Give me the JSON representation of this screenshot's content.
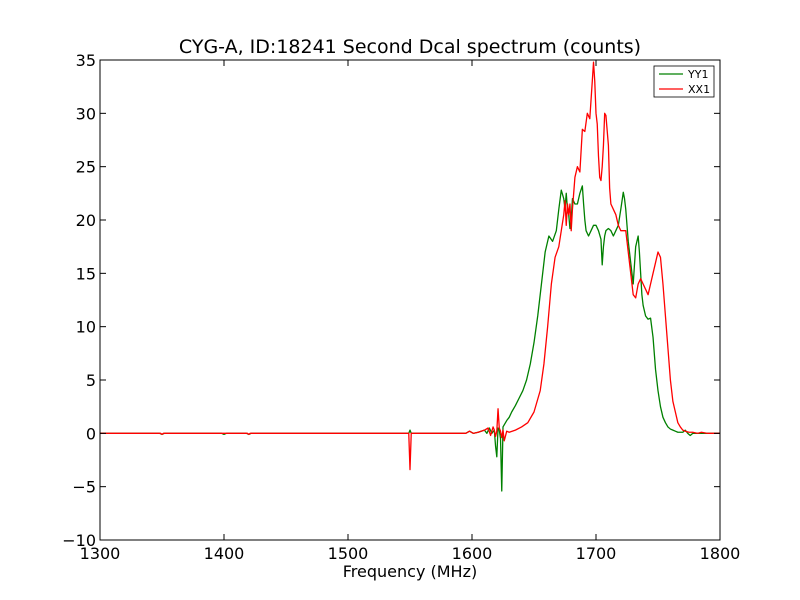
{
  "chart_data": {
    "type": "line",
    "title": "CYG-A, ID:18241 Second Dcal spectrum (counts)",
    "xlabel": "Frequency (MHz)",
    "ylabel": "",
    "xlim": [
      1300,
      1800
    ],
    "ylim": [
      -10,
      35
    ],
    "xticks": [
      1300,
      1400,
      1500,
      1600,
      1700,
      1800
    ],
    "yticks": [
      -10,
      -5,
      0,
      5,
      10,
      15,
      20,
      25,
      30,
      35
    ],
    "xtick_labels": [
      "1300",
      "1400",
      "1500",
      "1600",
      "1700",
      "1800"
    ],
    "ytick_labels": [
      "−10",
      "−5",
      "0",
      "5",
      "10",
      "15",
      "20",
      "25",
      "30",
      "35"
    ],
    "grid": false,
    "legend": "top-right",
    "series": [
      {
        "name": "YY1",
        "color": "#008000",
        "x": [
          1300,
          1348,
          1350,
          1352,
          1398,
          1400,
          1402,
          1418,
          1420,
          1422,
          1549,
          1550,
          1551,
          1595,
          1598,
          1601,
          1605,
          1610,
          1612,
          1614,
          1616,
          1618,
          1619,
          1620,
          1621,
          1622,
          1623,
          1624,
          1625,
          1626,
          1628,
          1630,
          1632,
          1635,
          1638,
          1641,
          1644,
          1647,
          1650,
          1653,
          1656,
          1659,
          1662,
          1665,
          1668,
          1670,
          1672,
          1674,
          1675,
          1676,
          1677,
          1678,
          1679,
          1680,
          1681,
          1683,
          1685,
          1687,
          1689,
          1690,
          1691,
          1692,
          1694,
          1696,
          1698,
          1700,
          1702,
          1704,
          1705,
          1706,
          1707,
          1708,
          1710,
          1712,
          1714,
          1716,
          1718,
          1720,
          1722,
          1723,
          1724,
          1725,
          1726,
          1728,
          1730,
          1732,
          1734,
          1735,
          1736,
          1737,
          1738,
          1740,
          1742,
          1744,
          1746,
          1748,
          1750,
          1752,
          1754,
          1756,
          1758,
          1760,
          1762,
          1764,
          1766,
          1768,
          1770,
          1772,
          1774,
          1776,
          1778,
          1780,
          1782,
          1785,
          1790,
          1800
        ],
        "values": [
          0,
          0,
          -0.1,
          0,
          0,
          -0.1,
          0,
          0,
          -0.1,
          0,
          0,
          0.3,
          0,
          0,
          0.2,
          0,
          0.1,
          0.3,
          0,
          0.5,
          0,
          0.3,
          -1.2,
          -2.2,
          0.5,
          0.3,
          -0.5,
          -5.4,
          0.6,
          0.8,
          1.2,
          1.5,
          2,
          2.6,
          3.3,
          4,
          5,
          6.5,
          8.5,
          11,
          14,
          17,
          18.5,
          18,
          19,
          21,
          22.8,
          22,
          21,
          22.5,
          21,
          20.5,
          19.2,
          20,
          22,
          21.5,
          21.5,
          22.5,
          23.2,
          21.5,
          20,
          19,
          18.5,
          19,
          19.5,
          19.5,
          19,
          18.2,
          15.8,
          17.5,
          18.5,
          19,
          19.2,
          19,
          18.5,
          19,
          19.5,
          21,
          22.6,
          22,
          21,
          19.5,
          18,
          16,
          14,
          17.5,
          18.5,
          17,
          15,
          13,
          12,
          11,
          10.7,
          10.8,
          9,
          6,
          4,
          2.5,
          1.5,
          1,
          0.6,
          0.4,
          0.3,
          0.2,
          0.1,
          0.1,
          0.1,
          0.3,
          0,
          -0.2,
          0,
          0,
          0,
          0,
          0,
          0
        ]
      },
      {
        "name": "XX1",
        "color": "#ff0000",
        "x": [
          1300,
          1349,
          1350,
          1351,
          1419,
          1420,
          1421,
          1549,
          1550,
          1551,
          1595,
          1598,
          1601,
          1605,
          1610,
          1613,
          1615,
          1617,
          1618,
          1619,
          1620,
          1621,
          1622,
          1623,
          1624,
          1625,
          1626,
          1628,
          1630,
          1635,
          1640,
          1645,
          1650,
          1655,
          1658,
          1661,
          1664,
          1667,
          1670,
          1672,
          1674,
          1675,
          1676,
          1677,
          1678,
          1679,
          1680,
          1681,
          1683,
          1685,
          1687,
          1689,
          1691,
          1693,
          1695,
          1697,
          1698,
          1699,
          1700,
          1701,
          1702,
          1703,
          1704,
          1705,
          1706,
          1707,
          1708,
          1710,
          1711,
          1712,
          1714,
          1716,
          1718,
          1720,
          1722,
          1724,
          1726,
          1728,
          1730,
          1732,
          1734,
          1736,
          1738,
          1740,
          1742,
          1744,
          1746,
          1748,
          1750,
          1752,
          1754,
          1756,
          1758,
          1760,
          1762,
          1764,
          1766,
          1768,
          1770,
          1772,
          1775,
          1778,
          1782,
          1785,
          1790,
          1800
        ],
        "values": [
          0,
          0,
          -0.1,
          0,
          0,
          -0.1,
          0,
          0,
          -3.4,
          0,
          0,
          0.2,
          0,
          0.1,
          0.3,
          0.5,
          -0.2,
          0.6,
          0.3,
          -0.3,
          0.2,
          2.3,
          0.5,
          0.2,
          -0.4,
          0.3,
          -0.7,
          0.2,
          0.1,
          0.3,
          0.6,
          1,
          2,
          4,
          6.5,
          10,
          14,
          16.5,
          17.5,
          19,
          20.5,
          21.8,
          19.5,
          21.5,
          20.5,
          21.5,
          19,
          21,
          24,
          25,
          24.5,
          28.5,
          28.3,
          30,
          29.5,
          33,
          34.8,
          33,
          30,
          29,
          26,
          24,
          23.7,
          25,
          27,
          30,
          29.8,
          27,
          23,
          21.5,
          21,
          20.5,
          19.5,
          19,
          19,
          19,
          17,
          15,
          13,
          12.7,
          14,
          14.5,
          14,
          13.5,
          13,
          14,
          15,
          16,
          17,
          16.5,
          14,
          11,
          8,
          5,
          3,
          2,
          1,
          0.6,
          0.3,
          0.2,
          0.1,
          0.1,
          0,
          0.1,
          0,
          0
        ]
      }
    ]
  }
}
